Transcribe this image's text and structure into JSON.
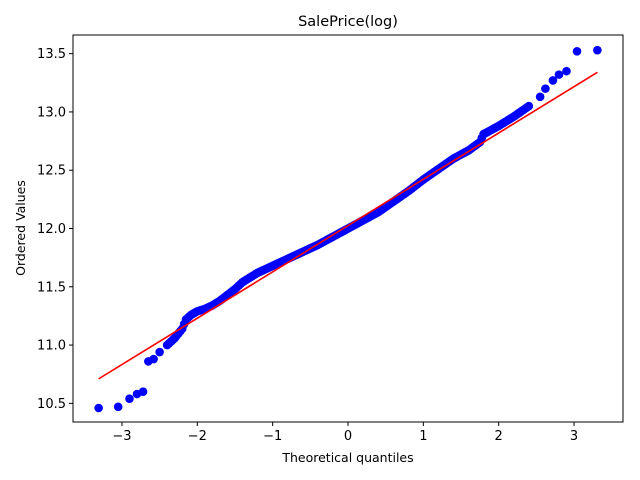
{
  "chart_data": {
    "type": "scatter",
    "title": "SalePrice(log)",
    "xlabel": "Theoretical quantiles",
    "ylabel": "Ordered Values",
    "xlim": [
      -3.65,
      3.65
    ],
    "ylim": [
      10.34,
      13.66
    ],
    "xticks": [
      -3,
      -2,
      -1,
      0,
      1,
      2,
      3
    ],
    "xtick_labels": [
      "−3",
      "−2",
      "−1",
      "0",
      "1",
      "2",
      "3"
    ],
    "yticks": [
      10.5,
      11.0,
      11.5,
      12.0,
      12.5,
      13.0,
      13.5
    ],
    "ytick_labels": [
      "10.5",
      "11.0",
      "11.5",
      "12.0",
      "12.5",
      "13.0",
      "13.5"
    ],
    "grid": false,
    "legend": "none",
    "marker_color": "#0000ff",
    "line_color": "#ff0000",
    "fit_line": {
      "x": [
        -3.31,
        3.31
      ],
      "y": [
        10.71,
        13.34
      ]
    },
    "points_curve": {
      "x": [
        -3.31,
        -3.05,
        -2.9,
        -2.8,
        -2.72,
        -2.65,
        -2.58,
        -2.5,
        -2.4,
        -2.3,
        -2.2,
        -2.15,
        -2.08,
        -2.0,
        -1.9,
        -1.8,
        -1.7,
        -1.6,
        -1.5,
        -1.4,
        -1.2,
        -1.0,
        -0.8,
        -0.6,
        -0.4,
        -0.2,
        0.0,
        0.2,
        0.4,
        0.6,
        0.8,
        1.0,
        1.2,
        1.4,
        1.6,
        1.75,
        1.8,
        2.0,
        2.2,
        2.4,
        2.55,
        2.62,
        2.72,
        2.8,
        2.9,
        3.04,
        3.31
      ],
      "y": [
        10.46,
        10.47,
        10.54,
        10.58,
        10.6,
        10.86,
        10.88,
        10.94,
        11.0,
        11.06,
        11.14,
        11.22,
        11.26,
        11.29,
        11.31,
        11.34,
        11.38,
        11.43,
        11.48,
        11.54,
        11.62,
        11.68,
        11.74,
        11.8,
        11.86,
        11.93,
        12.0,
        12.07,
        12.14,
        12.23,
        12.32,
        12.42,
        12.51,
        12.6,
        12.67,
        12.74,
        12.81,
        12.88,
        12.96,
        13.05,
        13.13,
        13.2,
        13.27,
        13.32,
        13.35,
        13.52,
        13.53
      ]
    }
  }
}
